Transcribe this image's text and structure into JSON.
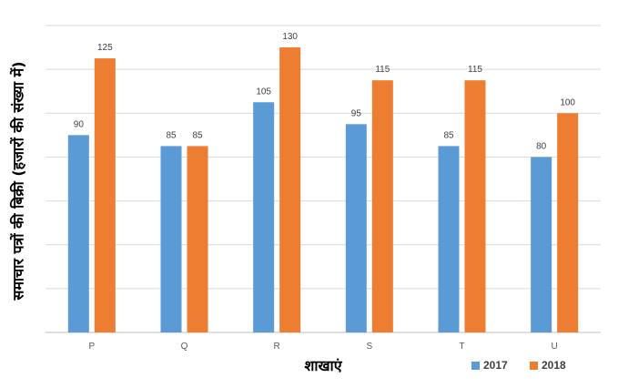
{
  "chart_data": {
    "type": "bar",
    "categories": [
      "P",
      "Q",
      "R",
      "S",
      "T",
      "U"
    ],
    "series": [
      {
        "name": "2017",
        "values": [
          90,
          85,
          105,
          95,
          85,
          80
        ],
        "color": "#5B9BD5"
      },
      {
        "name": "2018",
        "values": [
          125,
          85,
          130,
          115,
          115,
          100
        ],
        "color": "#ED7D31"
      }
    ],
    "xlabel": "शाखाएं",
    "ylabel": "समाचार पत्रों की बिक्री (हजारों की संख्या में)",
    "ylim": [
      0,
      140
    ],
    "y_axis_tick_labels_shown": false,
    "grid": true,
    "legend_position": "bottom-right",
    "gridline_color": "#D9D9D9"
  }
}
